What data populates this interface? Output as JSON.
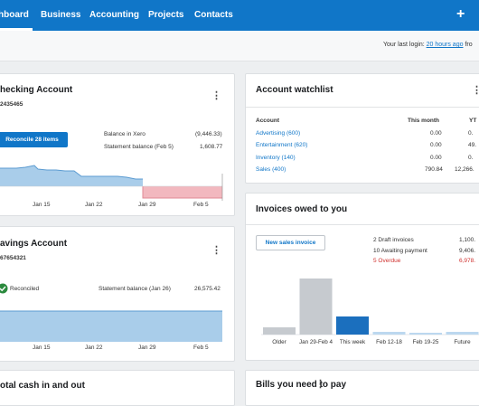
{
  "nav": {
    "items": [
      "hboard",
      "Business",
      "Accounting",
      "Projects",
      "Contacts"
    ],
    "add_icon": "+"
  },
  "header": {
    "last_login_prefix": "Your last login:",
    "last_login_link": "20 hours ago",
    "last_login_suffix": "fro"
  },
  "checking": {
    "title": "hecking Account",
    "number": "2435465",
    "reconcile_button": "Reconcile 28 items",
    "balance_xero_label": "Balance in Xero",
    "balance_xero_value": "(9,446.33)",
    "statement_label": "Statement balance (Feb 5)",
    "statement_value": "1,608.77",
    "x_labels": [
      "Jan 15",
      "Jan 22",
      "Jan 29",
      "Feb 5"
    ],
    "menu_icon": "⋮"
  },
  "savings": {
    "title": "avings Account",
    "number": "67654321",
    "reconciled_label": "Reconciled",
    "statement_label": "Statement balance (Jan 26)",
    "statement_value": "26,575.42",
    "x_labels": [
      "Jan 15",
      "Jan 22",
      "Jan 29",
      "Feb 5"
    ],
    "menu_icon": "⋮"
  },
  "total_cash": {
    "title": "otal cash in and out"
  },
  "watchlist": {
    "title": "Account watchlist",
    "menu_icon": "⋮",
    "columns": [
      "Account",
      "This month",
      "YT"
    ],
    "rows": [
      {
        "account": "Advertising (600)",
        "month": "0.00",
        "ytd": "0."
      },
      {
        "account": "Entertainment (620)",
        "month": "0.00",
        "ytd": "49."
      },
      {
        "account": "Inventory (140)",
        "month": "0.00",
        "ytd": "0."
      },
      {
        "account": "Sales (400)",
        "month": "790.84",
        "ytd": "12,266."
      }
    ]
  },
  "invoices": {
    "title": "Invoices owed to you",
    "new_button": "New sales invoice",
    "summary": [
      {
        "label": "2 Draft invoices",
        "value": "1,100."
      },
      {
        "label": "10 Awaiting payment",
        "value": "9,406."
      },
      {
        "label": "5 Overdue",
        "value": "6,978."
      }
    ]
  },
  "bills": {
    "title": "Bills you need to pay",
    "menu_icon": "⋮"
  },
  "colors": {
    "brand": "#1076c8",
    "overdue": "#d0322f",
    "positive_fill": "#a9cdea",
    "negative_fill": "#f2b8bf"
  },
  "chart_data": [
    {
      "type": "bar",
      "categories": [
        "Older",
        "Jan 29-Feb 4",
        "This week",
        "Feb 12-18",
        "Feb 19-25",
        "Future"
      ],
      "values": [
        8,
        62,
        20,
        3,
        2,
        3
      ],
      "highlight": "This week"
    }
  ]
}
